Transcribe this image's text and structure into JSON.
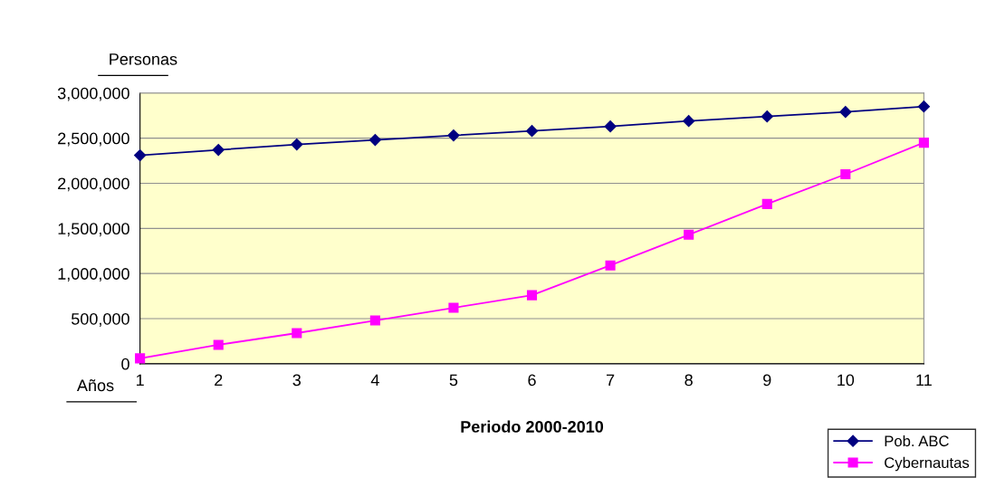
{
  "chart_data": {
    "type": "line",
    "xlabel": "Periodo 2000-2010",
    "annotations": [
      "Personas",
      "Años"
    ],
    "x": [
      1,
      2,
      3,
      4,
      5,
      6,
      7,
      8,
      9,
      10,
      11
    ],
    "series": [
      {
        "name": "Pob. ABC",
        "color": "#000080",
        "marker": "diamond",
        "values": [
          2310000,
          2370000,
          2430000,
          2480000,
          2530000,
          2580000,
          2630000,
          2690000,
          2740000,
          2790000,
          2850000
        ]
      },
      {
        "name": "Cybernautas",
        "color": "#ff00ff",
        "marker": "square",
        "values": [
          60000,
          210000,
          340000,
          480000,
          620000,
          760000,
          1090000,
          1430000,
          1770000,
          2100000,
          2450000
        ]
      }
    ],
    "xlim": [
      1,
      11
    ],
    "xticks": [
      1,
      2,
      3,
      4,
      5,
      6,
      7,
      8,
      9,
      10,
      11
    ],
    "ylim": [
      0,
      3000000
    ],
    "yticks": [
      0,
      {
        "value": 500000,
        "label": "500,000"
      },
      {
        "value": 1000000,
        "label": "1,000,000"
      },
      {
        "value": 1500000,
        "label": "1,500,000"
      },
      {
        "value": 2000000,
        "label": "2,000,000"
      },
      {
        "value": 2500000,
        "label": "2,500,000"
      },
      {
        "value": 3000000,
        "label": "3,000,000"
      }
    ],
    "grid": "y",
    "legend": "bottom right",
    "line_style": "solid"
  }
}
